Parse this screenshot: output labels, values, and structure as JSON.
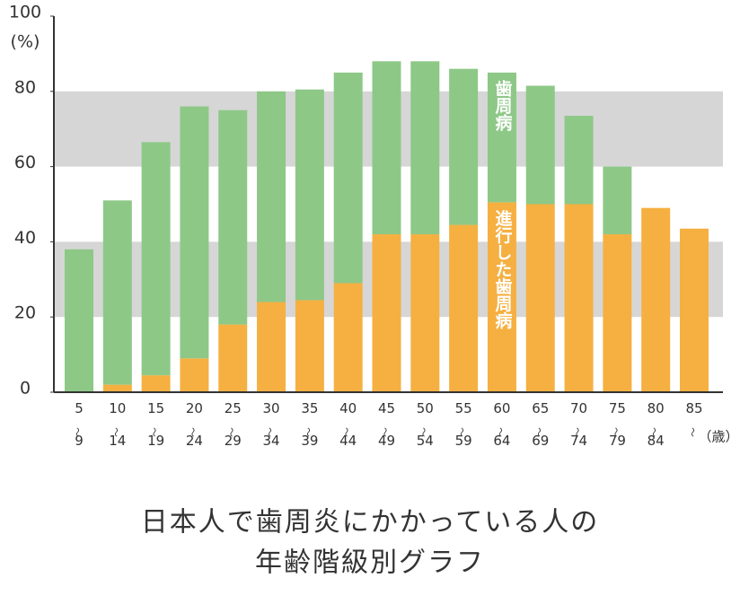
{
  "chart_data": {
    "type": "bar",
    "stacked": true,
    "title_lines": [
      "日本人で歯周炎にかかっている人の",
      "年齢階級別グラフ"
    ],
    "y_unit_label": "(%)",
    "x_unit_label": "（歳）",
    "categories": [
      "5〜9",
      "10〜14",
      "15〜19",
      "20〜24",
      "25〜29",
      "30〜34",
      "35〜39",
      "40〜44",
      "45〜49",
      "50〜54",
      "55〜59",
      "60〜64",
      "65〜69",
      "70〜74",
      "75〜79",
      "80〜84",
      "85〜"
    ],
    "series": [
      {
        "name": "進行した歯周病",
        "color": "#f5b041",
        "values": [
          0,
          2,
          4.5,
          9,
          18,
          24,
          24.5,
          29,
          42,
          42,
          44.5,
          50.5,
          50,
          50,
          42,
          49,
          43.5
        ]
      },
      {
        "name": "歯周病",
        "color": "#8dc887",
        "values": [
          38,
          49,
          62,
          67,
          57,
          56,
          56,
          56,
          46,
          46,
          41.5,
          34.5,
          31.5,
          23.5,
          18,
          0,
          0
        ]
      }
    ],
    "series_label_category": 11,
    "ylim": [
      0,
      100
    ],
    "yticks": [
      0,
      20,
      40,
      60,
      80,
      100
    ],
    "shaded_bands": [
      [
        20,
        40
      ],
      [
        60,
        80
      ]
    ],
    "band_color": "#d6d6d6"
  }
}
